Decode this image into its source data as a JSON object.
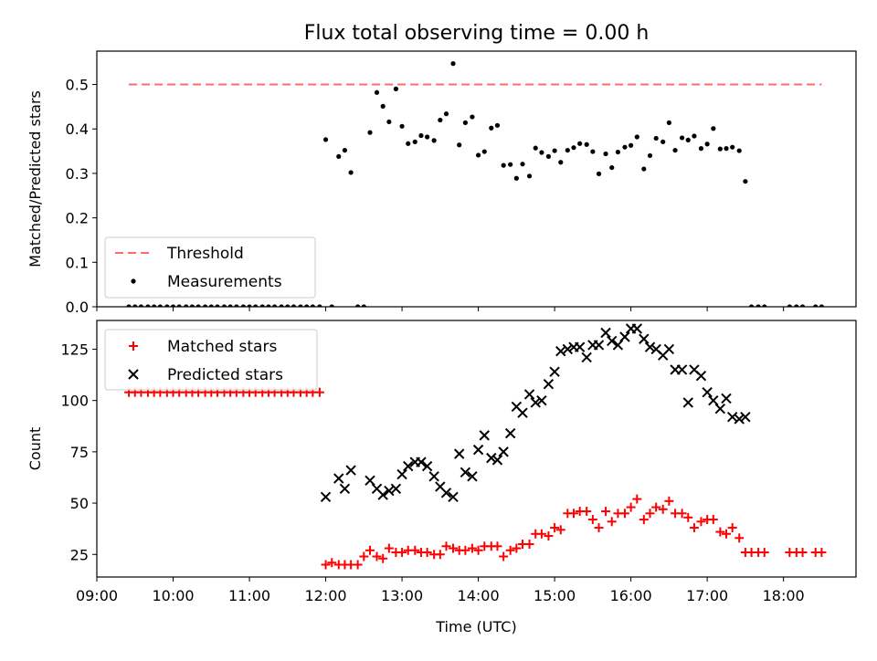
{
  "chart_data": [
    {
      "type": "scatter",
      "title": "Flux total observing time = 0.00 h",
      "xlabel": "",
      "ylabel": "Matched/Predicted stars",
      "xlim": [
        9.0,
        18.95
      ],
      "ylim": [
        0,
        0.575
      ],
      "yticks": [
        "0.0",
        "0.1",
        "0.2",
        "0.3",
        "0.4",
        "0.5"
      ],
      "legend": "lower-left",
      "threshold": {
        "name": "Threshold",
        "value": 0.5,
        "x": [
          9.42,
          18.5
        ],
        "color": "#ff6b6b"
      },
      "series": [
        {
          "name": "Measurements",
          "color": "#000000",
          "x": [
            9.42,
            9.5,
            9.58,
            9.67,
            9.75,
            9.83,
            9.92,
            10.0,
            10.08,
            10.17,
            10.25,
            10.33,
            10.42,
            10.5,
            10.58,
            10.67,
            10.75,
            10.83,
            10.92,
            11.0,
            11.08,
            11.17,
            11.25,
            11.33,
            11.42,
            11.5,
            11.58,
            11.67,
            11.75,
            11.83,
            11.92,
            12.0,
            12.08,
            12.17,
            12.25,
            12.33,
            12.42,
            12.5,
            12.58,
            12.67,
            12.75,
            12.83,
            12.92,
            13.0,
            13.08,
            13.17,
            13.25,
            13.33,
            13.42,
            13.5,
            13.58,
            13.67,
            13.75,
            13.83,
            13.92,
            14.0,
            14.08,
            14.17,
            14.25,
            14.33,
            14.42,
            14.5,
            14.58,
            14.67,
            14.75,
            14.83,
            14.92,
            15.0,
            15.08,
            15.17,
            15.25,
            15.33,
            15.42,
            15.5,
            15.58,
            15.67,
            15.75,
            15.83,
            15.92,
            16.0,
            16.08,
            16.17,
            16.25,
            16.33,
            16.42,
            16.5,
            16.58,
            16.67,
            16.75,
            16.83,
            16.92,
            17.0,
            17.08,
            17.17,
            17.25,
            17.33,
            17.42,
            17.5,
            17.58,
            17.67,
            17.75,
            18.08,
            18.17,
            18.25,
            18.42,
            18.5
          ],
          "y": [
            0,
            0,
            0,
            0,
            0,
            0,
            0,
            0,
            0,
            0,
            0,
            0,
            0,
            0,
            0,
            0,
            0,
            0,
            0,
            0,
            0,
            0,
            0,
            0,
            0,
            0,
            0,
            0,
            0,
            0,
            0,
            0.376,
            0,
            0.338,
            0.352,
            0.302,
            0,
            0,
            0.392,
            0.482,
            0.451,
            0.416,
            0.49,
            0.406,
            0.367,
            0.371,
            0.385,
            0.382,
            0.374,
            0.42,
            0.434,
            0.547,
            0.364,
            0.414,
            0.427,
            0.341,
            0.349,
            0.402,
            0.408,
            0.318,
            0.32,
            0.289,
            0.321,
            0.294,
            0.357,
            0.347,
            0.338,
            0.351,
            0.325,
            0.352,
            0.358,
            0.367,
            0.365,
            0.349,
            0.299,
            0.344,
            0.313,
            0.348,
            0.359,
            0.363,
            0.382,
            0.31,
            0.34,
            0.379,
            0.371,
            0.414,
            0.352,
            0.38,
            0.375,
            0.384,
            0.356,
            0.366,
            0.401,
            0.355,
            0.356,
            0.359,
            0.351,
            0.282,
            0,
            0,
            0,
            0,
            0,
            0,
            0,
            0
          ]
        }
      ]
    },
    {
      "type": "scatter",
      "title": "",
      "xlabel": "Time (UTC)",
      "ylabel": "Count",
      "xlim": [
        9.0,
        18.95
      ],
      "ylim": [
        14,
        139
      ],
      "yticks": [
        "25",
        "50",
        "75",
        "100",
        "125"
      ],
      "xticks": [
        "09:00",
        "10:00",
        "11:00",
        "12:00",
        "13:00",
        "14:00",
        "15:00",
        "16:00",
        "17:00",
        "18:00"
      ],
      "legend": "top-left",
      "series": [
        {
          "name": "Matched stars",
          "marker": "+",
          "color": "#ff0000",
          "x": [
            9.42,
            9.5,
            9.58,
            9.67,
            9.75,
            9.83,
            9.92,
            10.0,
            10.08,
            10.17,
            10.25,
            10.33,
            10.42,
            10.5,
            10.58,
            10.67,
            10.75,
            10.83,
            10.92,
            11.0,
            11.08,
            11.17,
            11.25,
            11.33,
            11.42,
            11.5,
            11.58,
            11.67,
            11.75,
            11.83,
            11.92,
            12.0,
            12.08,
            12.17,
            12.25,
            12.33,
            12.42,
            12.5,
            12.58,
            12.67,
            12.75,
            12.83,
            12.92,
            13.0,
            13.08,
            13.17,
            13.25,
            13.33,
            13.42,
            13.5,
            13.58,
            13.67,
            13.75,
            13.83,
            13.92,
            14.0,
            14.08,
            14.17,
            14.25,
            14.33,
            14.42,
            14.5,
            14.58,
            14.67,
            14.75,
            14.83,
            14.92,
            15.0,
            15.08,
            15.17,
            15.25,
            15.33,
            15.42,
            15.5,
            15.58,
            15.67,
            15.75,
            15.83,
            15.92,
            16.0,
            16.08,
            16.17,
            16.25,
            16.33,
            16.42,
            16.5,
            16.58,
            16.67,
            16.75,
            16.83,
            16.92,
            17.0,
            17.08,
            17.17,
            17.25,
            17.33,
            17.42,
            17.5,
            17.58,
            17.67,
            17.75,
            18.08,
            18.17,
            18.25,
            18.42,
            18.5
          ],
          "y": [
            104,
            104,
            104,
            104,
            104,
            104,
            104,
            104,
            104,
            104,
            104,
            104,
            104,
            104,
            104,
            104,
            104,
            104,
            104,
            104,
            104,
            104,
            104,
            104,
            104,
            104,
            104,
            104,
            104,
            104,
            104,
            20,
            21,
            20,
            20,
            20,
            20,
            24,
            27,
            24,
            23,
            28,
            26,
            26,
            27,
            27,
            26,
            26,
            25,
            25,
            29,
            28,
            27,
            27,
            28,
            27,
            29,
            29,
            29,
            24,
            27,
            28,
            30,
            30,
            35,
            35,
            34,
            38,
            37,
            45,
            45,
            46,
            46,
            42,
            38,
            46,
            41,
            45,
            45,
            48,
            52,
            42,
            45,
            48,
            47,
            51,
            45,
            45,
            43,
            38,
            41,
            42,
            42,
            36,
            35,
            38,
            33,
            26,
            26,
            26,
            26,
            26,
            26,
            26,
            26,
            26
          ]
        },
        {
          "name": "Predicted stars",
          "marker": "x",
          "color": "#000000",
          "x": [
            12.0,
            12.17,
            12.25,
            12.33,
            12.58,
            12.67,
            12.75,
            12.83,
            12.92,
            13.0,
            13.08,
            13.17,
            13.25,
            13.33,
            13.42,
            13.5,
            13.58,
            13.67,
            13.75,
            13.83,
            13.92,
            14.0,
            14.08,
            14.17,
            14.25,
            14.33,
            14.42,
            14.5,
            14.58,
            14.67,
            14.75,
            14.83,
            14.92,
            15.0,
            15.08,
            15.17,
            15.25,
            15.33,
            15.42,
            15.5,
            15.58,
            15.67,
            15.75,
            15.83,
            15.92,
            16.0,
            16.08,
            16.17,
            16.25,
            16.33,
            16.42,
            16.5,
            16.58,
            16.67,
            16.75,
            16.83,
            16.92,
            17.0,
            17.08,
            17.17,
            17.25,
            17.33,
            17.42,
            17.5
          ],
          "y": [
            53,
            62,
            57,
            66,
            61,
            57,
            54,
            56,
            57,
            64,
            68,
            70,
            70,
            68,
            63,
            58,
            55,
            53,
            74,
            65,
            63,
            76,
            83,
            72,
            71,
            75,
            84,
            97,
            94,
            103,
            99,
            100,
            108,
            114,
            124,
            125,
            126,
            126,
            121,
            127,
            127,
            133,
            129,
            127,
            131,
            135,
            135,
            130,
            126,
            125,
            122,
            125,
            115,
            115,
            99,
            115,
            112,
            104,
            100,
            96,
            101,
            92,
            91,
            92
          ]
        }
      ]
    }
  ]
}
